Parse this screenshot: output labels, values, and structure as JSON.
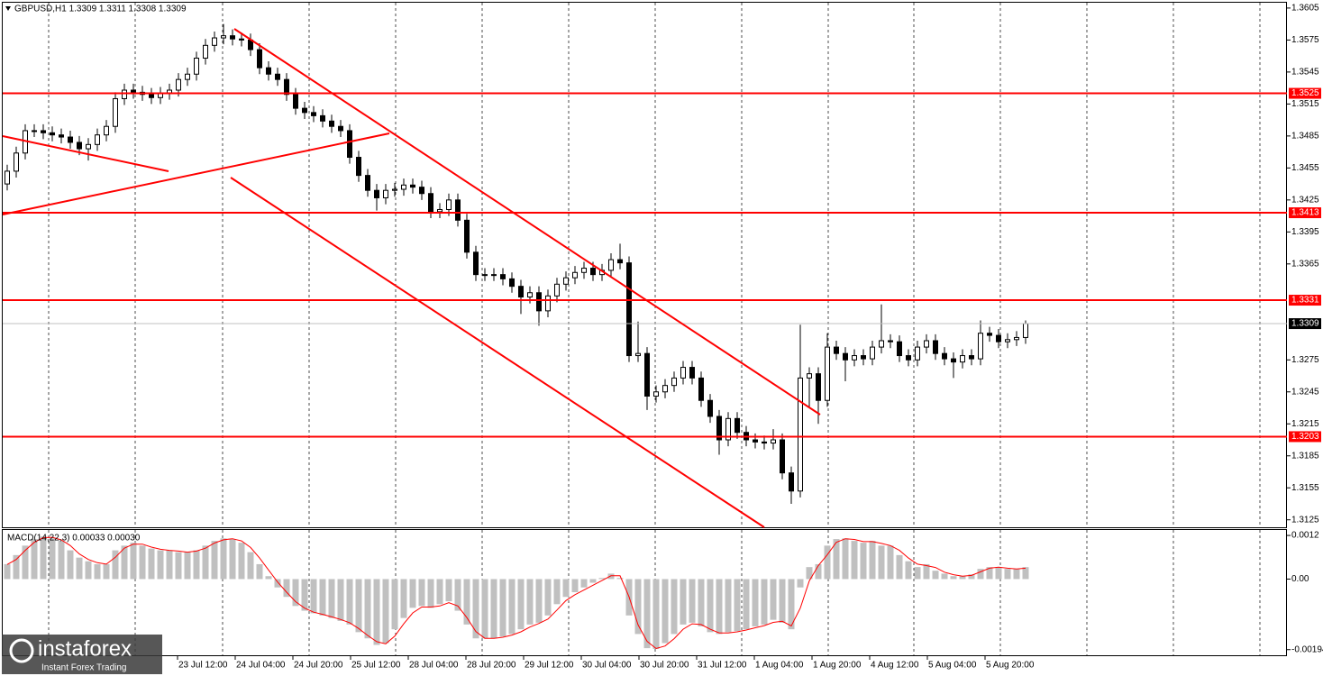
{
  "chart_data": [
    {
      "type": "candlestick",
      "title": "GBPUSD,H1  1.3309 1.3311 1.3308 1.3309",
      "open": [
        1.344,
        1.3452,
        1.3469,
        1.349,
        1.349,
        1.3488,
        1.3486,
        1.3484,
        1.3479,
        1.3473,
        1.3477,
        1.3486,
        1.3494,
        1.352,
        1.3528,
        1.3526,
        1.3524,
        1.3521,
        1.3525,
        1.3528,
        1.3538,
        1.3543,
        1.3558,
        1.357,
        1.3577,
        1.3579,
        1.3576,
        1.3575,
        1.3566,
        1.3549,
        1.3543,
        1.3538,
        1.3524,
        1.3511,
        1.3507,
        1.3504,
        1.3499,
        1.3494,
        1.349,
        1.3465,
        1.3448,
        1.3434,
        1.3427,
        1.3434,
        1.3435,
        1.3439,
        1.3437,
        1.3431,
        1.3414,
        1.3416,
        1.3425,
        1.3406,
        1.3376,
        1.3355,
        1.3355,
        1.3355,
        1.3351,
        1.3344,
        1.3334,
        1.3338,
        1.3321,
        1.3335,
        1.3346,
        1.3352,
        1.3357,
        1.3361,
        1.3355,
        1.3359,
        1.3369,
        1.3366,
        1.3279,
        1.3281,
        1.3241,
        1.3245,
        1.3251,
        1.3258,
        1.3268,
        1.3258,
        1.3237,
        1.3222,
        1.32,
        1.322,
        1.3207,
        1.32,
        1.3198,
        1.3197,
        1.32,
        1.3169,
        1.3152,
        1.3258,
        1.3262,
        1.3237,
        1.3287,
        1.3281,
        1.3275,
        1.3279,
        1.3276,
        1.3287,
        1.3293,
        1.3292,
        1.3279,
        1.3275,
        1.3287,
        1.3293,
        1.3281,
        1.3276,
        1.3273,
        1.3279,
        1.3276,
        1.33,
        1.3298,
        1.3292,
        1.3294,
        1.3296
      ],
      "high": [
        1.3458,
        1.3475,
        1.3496,
        1.3496,
        1.3496,
        1.3494,
        1.3492,
        1.349,
        1.3485,
        1.3483,
        1.3492,
        1.35,
        1.3526,
        1.3534,
        1.3534,
        1.3532,
        1.353,
        1.3531,
        1.3534,
        1.3544,
        1.3549,
        1.3564,
        1.3576,
        1.3583,
        1.359,
        1.3585,
        1.3582,
        1.3581,
        1.3572,
        1.3555,
        1.3549,
        1.3544,
        1.353,
        1.3517,
        1.3513,
        1.351,
        1.3505,
        1.35,
        1.3496,
        1.3471,
        1.3454,
        1.344,
        1.344,
        1.3441,
        1.3445,
        1.3445,
        1.3443,
        1.3437,
        1.3422,
        1.3431,
        1.3431,
        1.3412,
        1.3382,
        1.3361,
        1.3361,
        1.3361,
        1.3357,
        1.335,
        1.3344,
        1.3344,
        1.3341,
        1.3352,
        1.3358,
        1.3363,
        1.3367,
        1.3367,
        1.3365,
        1.3375,
        1.3384,
        1.3372,
        1.3311,
        1.3287,
        1.3251,
        1.3257,
        1.3264,
        1.3274,
        1.3274,
        1.3264,
        1.3243,
        1.3228,
        1.3226,
        1.3226,
        1.3213,
        1.3206,
        1.3204,
        1.321,
        1.3206,
        1.3175,
        1.3308,
        1.3268,
        1.3268,
        1.33,
        1.3293,
        1.3287,
        1.3285,
        1.3285,
        1.3293,
        1.3327,
        1.3299,
        1.3298,
        1.3285,
        1.3293,
        1.3299,
        1.3299,
        1.3287,
        1.3282,
        1.3285,
        1.3285,
        1.3312,
        1.3306,
        1.3304,
        1.33,
        1.3302,
        1.3312
      ],
      "low": [
        1.3434,
        1.3446,
        1.3463,
        1.3484,
        1.3482,
        1.348,
        1.3478,
        1.3473,
        1.3467,
        1.3462,
        1.3471,
        1.348,
        1.3488,
        1.3514,
        1.352,
        1.3518,
        1.3515,
        1.3515,
        1.3519,
        1.3522,
        1.3532,
        1.3537,
        1.3552,
        1.3564,
        1.3571,
        1.357,
        1.3569,
        1.356,
        1.3543,
        1.3537,
        1.3532,
        1.3518,
        1.3505,
        1.3501,
        1.3498,
        1.3493,
        1.3488,
        1.3484,
        1.3459,
        1.3442,
        1.3428,
        1.3415,
        1.3421,
        1.3428,
        1.3429,
        1.3431,
        1.3425,
        1.3408,
        1.3408,
        1.341,
        1.34,
        1.337,
        1.3349,
        1.3349,
        1.3349,
        1.3345,
        1.3338,
        1.3318,
        1.3328,
        1.3307,
        1.3315,
        1.3329,
        1.334,
        1.3346,
        1.3351,
        1.3349,
        1.3349,
        1.3353,
        1.336,
        1.3273,
        1.3273,
        1.3228,
        1.3235,
        1.3239,
        1.3245,
        1.3252,
        1.3252,
        1.3231,
        1.3216,
        1.3186,
        1.3194,
        1.3201,
        1.3194,
        1.3192,
        1.3191,
        1.3191,
        1.3163,
        1.314,
        1.3146,
        1.3231,
        1.3215,
        1.3231,
        1.3275,
        1.3255,
        1.3269,
        1.327,
        1.327,
        1.3281,
        1.3286,
        1.3273,
        1.3269,
        1.3269,
        1.3281,
        1.3275,
        1.327,
        1.3258,
        1.3267,
        1.327,
        1.327,
        1.3292,
        1.3286,
        1.3286,
        1.3288,
        1.329
      ],
      "close": [
        1.3452,
        1.3469,
        1.349,
        1.349,
        1.3488,
        1.3486,
        1.3484,
        1.3479,
        1.3473,
        1.3477,
        1.3486,
        1.3494,
        1.352,
        1.3528,
        1.3526,
        1.3524,
        1.3521,
        1.3525,
        1.3528,
        1.3538,
        1.3543,
        1.3558,
        1.357,
        1.3577,
        1.3579,
        1.3576,
        1.3575,
        1.3566,
        1.3549,
        1.3543,
        1.3538,
        1.3524,
        1.3511,
        1.3507,
        1.3504,
        1.3499,
        1.3494,
        1.349,
        1.3465,
        1.3448,
        1.3434,
        1.3427,
        1.3434,
        1.3435,
        1.3439,
        1.3437,
        1.3431,
        1.3414,
        1.3416,
        1.3425,
        1.3406,
        1.3376,
        1.3355,
        1.3355,
        1.3355,
        1.3351,
        1.3344,
        1.3334,
        1.3338,
        1.3321,
        1.3335,
        1.3346,
        1.3352,
        1.3357,
        1.3361,
        1.3355,
        1.3359,
        1.3369,
        1.3366,
        1.3279,
        1.3281,
        1.3241,
        1.3245,
        1.3251,
        1.3258,
        1.3268,
        1.3258,
        1.3237,
        1.3222,
        1.32,
        1.322,
        1.3207,
        1.32,
        1.3198,
        1.3197,
        1.32,
        1.3169,
        1.3152,
        1.3258,
        1.3262,
        1.3237,
        1.3287,
        1.3281,
        1.3275,
        1.3279,
        1.3276,
        1.3287,
        1.3293,
        1.3292,
        1.3279,
        1.3275,
        1.3287,
        1.3293,
        1.3281,
        1.3276,
        1.3273,
        1.3279,
        1.3276,
        1.33,
        1.3298,
        1.3292,
        1.3294,
        1.3296,
        1.3309
      ],
      "ylim": [
        1.3118,
        1.361
      ],
      "yticks": [
        1.3605,
        1.3575,
        1.3545,
        1.3515,
        1.3485,
        1.3455,
        1.3425,
        1.3395,
        1.3365,
        1.3275,
        1.3245,
        1.3215,
        1.3185,
        1.3155,
        1.3125
      ],
      "xlim": [
        -0.5,
        142.0
      ],
      "xticks": [
        {
          "value": 18.9,
          "label": "23 Jul 12:00"
        },
        {
          "value": 25.3,
          "label": "24 Jul 04:00"
        },
        {
          "value": 31.7,
          "label": "24 Jul 20:00"
        },
        {
          "value": 38.1,
          "label": "25 Jul 12:00"
        },
        {
          "value": 44.5,
          "label": "28 Jul 04:00"
        },
        {
          "value": 50.9,
          "label": "28 Jul 20:00"
        },
        {
          "value": 57.3,
          "label": "29 Jul 12:00"
        },
        {
          "value": 63.7,
          "label": "30 Jul 04:00"
        },
        {
          "value": 70.1,
          "label": "30 Jul 20:00"
        },
        {
          "value": 76.5,
          "label": "31 Jul 12:00"
        },
        {
          "value": 82.9,
          "label": "1 Aug 04:00"
        },
        {
          "value": 89.3,
          "label": "1 Aug 20:00"
        },
        {
          "value": 95.7,
          "label": "4 Aug 12:00"
        },
        {
          "value": 102.1,
          "label": "5 Aug 04:00"
        },
        {
          "value": 108.5,
          "label": "5 Aug 20:00"
        }
      ],
      "xgrid": [
        4.6,
        14.2,
        23.9,
        33.5,
        43.1,
        52.7,
        62.3,
        71.9,
        81.5,
        91.1,
        100.6,
        110.2,
        119.8,
        129.4,
        139.0
      ],
      "levels": [
        1.3525,
        1.3413,
        1.3331,
        1.3203
      ],
      "level_color": "#ff0000",
      "last": 1.3309,
      "color": "#000000"
    },
    {
      "type": "macd",
      "title": "MACD(14,22,3) 0.00033 0.00030",
      "histogram": [
        0.00041,
        0.00066,
        0.00092,
        0.0011,
        0.00117,
        0.00112,
        0.00105,
        0.00079,
        0.00059,
        0.00049,
        0.00041,
        0.00041,
        0.00079,
        0.00092,
        0.001,
        0.00092,
        0.00084,
        0.00079,
        0.00079,
        0.00074,
        0.00074,
        0.00079,
        0.00092,
        0.00105,
        0.00112,
        0.0011,
        0.001,
        0.00074,
        0.00041,
        8e-05,
        -0.00023,
        -0.00049,
        -0.00074,
        -0.00087,
        -0.00094,
        -0.001,
        -0.00107,
        -0.00115,
        -0.00125,
        -0.00146,
        -0.00163,
        -0.00181,
        -0.00176,
        -0.00138,
        -0.00107,
        -0.00079,
        -0.00074,
        -0.00079,
        -0.00069,
        -0.00061,
        -0.00087,
        -0.00125,
        -0.00163,
        -0.00163,
        -0.00163,
        -0.00158,
        -0.00151,
        -0.00138,
        -0.00125,
        -0.0012,
        -0.001,
        -0.00069,
        -0.00049,
        -0.00036,
        -0.00023,
        -0.0001,
        3e-05,
        0.00015,
        3e-05,
        -0.001,
        -0.00151,
        -0.0019,
        -0.00192,
        -0.00176,
        -0.00151,
        -0.00125,
        -0.0012,
        -0.0013,
        -0.00146,
        -0.00151,
        -0.00146,
        -0.00143,
        -0.00138,
        -0.0013,
        -0.00125,
        -0.00112,
        -0.0012,
        -0.00138,
        -0.00023,
        0.00033,
        0.00041,
        0.00092,
        0.0011,
        0.00112,
        0.00105,
        0.001,
        0.00105,
        0.00092,
        0.00092,
        0.00066,
        0.00049,
        0.00033,
        0.00041,
        0.00023,
        0.00015,
        8e-05,
        8e-05,
        0.00013,
        0.00028,
        0.00033,
        0.00033,
        0.00028,
        0.00028,
        0.00033
      ],
      "signal": [
        0.0004,
        0.00054,
        0.00079,
        0.00101,
        0.00114,
        0.00115,
        0.00108,
        0.00092,
        0.00069,
        0.00054,
        0.00045,
        0.00041,
        0.0006,
        0.00085,
        0.00096,
        0.00096,
        0.00088,
        0.00082,
        0.00079,
        0.00077,
        0.00074,
        0.00077,
        0.00085,
        0.00099,
        0.00108,
        0.00111,
        0.00105,
        0.00087,
        0.00058,
        0.00025,
        -8e-05,
        -0.00036,
        -0.00062,
        -0.0008,
        -0.00091,
        -0.00097,
        -0.00104,
        -0.00111,
        -0.0012,
        -0.00136,
        -0.00155,
        -0.00172,
        -0.00178,
        -0.00157,
        -0.00123,
        -0.00093,
        -0.00077,
        -0.00077,
        -0.00074,
        -0.00065,
        -0.00074,
        -0.00106,
        -0.00144,
        -0.00163,
        -0.00163,
        -0.0016,
        -0.00154,
        -0.00145,
        -0.00132,
        -0.00122,
        -0.0011,
        -0.00085,
        -0.00059,
        -0.00043,
        -0.0003,
        -0.00017,
        -4e-05,
        9e-05,
        9e-05,
        -0.00049,
        -0.00126,
        -0.00171,
        -0.00191,
        -0.00184,
        -0.00164,
        -0.00138,
        -0.00123,
        -0.00125,
        -0.00138,
        -0.00148,
        -0.00148,
        -0.00145,
        -0.0014,
        -0.00134,
        -0.00128,
        -0.00119,
        -0.00116,
        -0.00129,
        -0.0008,
        -5e-05,
        0.00037,
        0.00067,
        0.00101,
        0.00111,
        0.00109,
        0.00103,
        0.00103,
        0.00098,
        0.00092,
        0.00079,
        0.00058,
        0.00041,
        0.00037,
        0.00032,
        0.00019,
        0.00012,
        8e-05,
        0.0001,
        0.0002,
        0.0003,
        0.00033,
        0.0003,
        0.00028,
        0.0003
      ],
      "ylim": [
        -0.00212,
        0.00135
      ],
      "yticks": [
        0.0012,
        {
          "value": 0,
          "label": "0.00"
        },
        -0.00194
      ],
      "histogram_color": "#c0c0c0",
      "signal_color": "#ff0000"
    }
  ],
  "logo": {
    "name": "instaforex",
    "tagline": "Instant Forex Trading"
  }
}
